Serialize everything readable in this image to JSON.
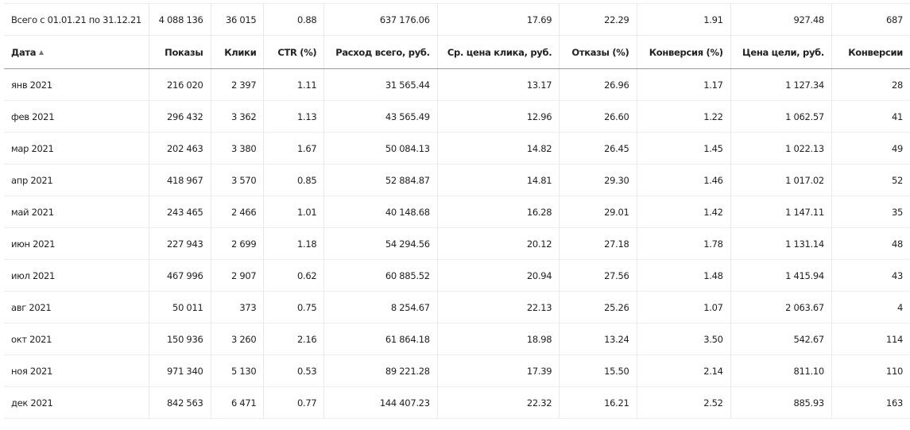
{
  "table": {
    "totals": [
      "Всего с 01.01.21 по 31.12.21",
      "4 088 136",
      "36 015",
      "0.88",
      "637 176.06",
      "17.69",
      "22.29",
      "1.91",
      "927.48",
      "687"
    ],
    "header": [
      "Дата",
      "Показы",
      "Клики",
      "CTR (%)",
      "Расход всего, руб.",
      "Ср. цена клика, руб.",
      "Отказы (%)",
      "Конверсия (%)",
      "Цена цели, руб.",
      "Конверсии"
    ],
    "rows": [
      [
        "янв 2021",
        "216 020",
        "2 397",
        "1.11",
        "31 565.44",
        "13.17",
        "26.96",
        "1.17",
        "1 127.34",
        "28"
      ],
      [
        "фев 2021",
        "296 432",
        "3 362",
        "1.13",
        "43 565.49",
        "12.96",
        "26.60",
        "1.22",
        "1 062.57",
        "41"
      ],
      [
        "мар 2021",
        "202 463",
        "3 380",
        "1.67",
        "50 084.13",
        "14.82",
        "26.45",
        "1.45",
        "1 022.13",
        "49"
      ],
      [
        "апр 2021",
        "418 967",
        "3 570",
        "0.85",
        "52 884.87",
        "14.81",
        "29.30",
        "1.46",
        "1 017.02",
        "52"
      ],
      [
        "май 2021",
        "243 465",
        "2 466",
        "1.01",
        "40 148.68",
        "16.28",
        "29.01",
        "1.42",
        "1 147.11",
        "35"
      ],
      [
        "июн 2021",
        "227 943",
        "2 699",
        "1.18",
        "54 294.56",
        "20.12",
        "27.18",
        "1.78",
        "1 131.14",
        "48"
      ],
      [
        "июл 2021",
        "467 996",
        "2 907",
        "0.62",
        "60 885.52",
        "20.94",
        "27.56",
        "1.48",
        "1 415.94",
        "43"
      ],
      [
        "авг 2021",
        "50 011",
        "373",
        "0.75",
        "8 254.67",
        "22.13",
        "25.26",
        "1.07",
        "2 063.67",
        "4"
      ],
      [
        "окт 2021",
        "150 936",
        "3 260",
        "2.16",
        "61 864.18",
        "18.98",
        "13.24",
        "3.50",
        "542.67",
        "114"
      ],
      [
        "ноя 2021",
        "971 340",
        "5 130",
        "0.53",
        "89 221.28",
        "17.39",
        "15.50",
        "2.14",
        "811.10",
        "110"
      ],
      [
        "дек 2021",
        "842 563",
        "6 471",
        "0.77",
        "144 407.23",
        "22.32",
        "16.21",
        "2.52",
        "885.93",
        "163"
      ]
    ]
  }
}
